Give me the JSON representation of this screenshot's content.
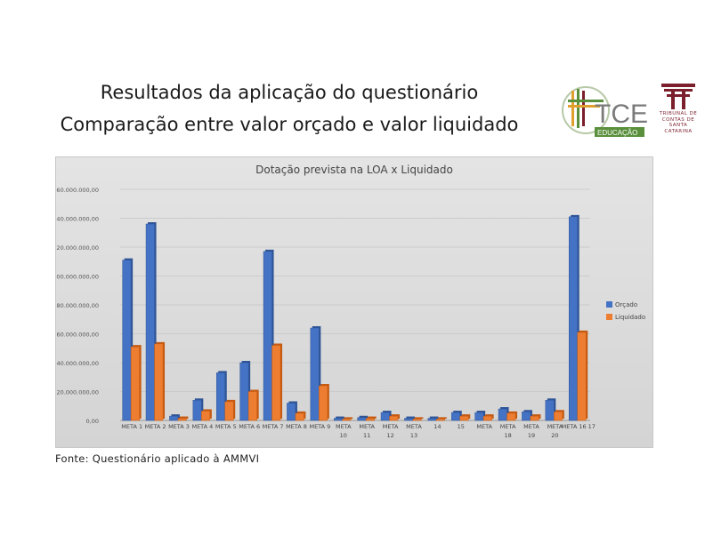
{
  "slide": {
    "title_line1": "Resultados da aplicação do questionário",
    "title_line2": "Comparação entre valor orçado e valor liquidado",
    "source": "Fonte: Questionário aplicado à AMMVI",
    "logo_tce_text": "TCE",
    "logo_tce_sub": "EDUCAÇÃO",
    "seal_text": "TRIBUNAL DE CONTAS DE SANTA CATARINA"
  },
  "colors": {
    "orcado": "#4472c4",
    "liquidado": "#ed7d31",
    "brand_red": "#7a1f2b"
  },
  "chart_data": {
    "type": "bar",
    "title": "Dotação prevista na LOA x Liquidado",
    "legend_position": "right",
    "grid": true,
    "ylim": [
      0,
      160000000
    ],
    "yticks": [
      "0,00",
      "20.000.000,00",
      "40.000.000,00",
      "60.000.000,00",
      "80.000.000,00",
      "100.000.000,00",
      "120.000.000,00",
      "140.000.000,00",
      "160.000.000,00"
    ],
    "categories": [
      "META 1",
      "META 2",
      "META 3",
      "META 4",
      "META 5",
      "META 6",
      "META 7",
      "META 8",
      "META 9",
      "META 10",
      "META 11",
      "META 12",
      "META 13",
      "14",
      "15",
      "META 16",
      "META 17",
      "META 18",
      "META 19",
      "META 20"
    ],
    "tick_labels": [
      [
        "META 1"
      ],
      [
        "META 2"
      ],
      [
        "META 3"
      ],
      [
        "META 4"
      ],
      [
        "META 5"
      ],
      [
        "META 6"
      ],
      [
        "META 7"
      ],
      [
        "META 8"
      ],
      [
        "META 9"
      ],
      [
        "META",
        "10"
      ],
      [
        "META",
        "11"
      ],
      [
        "META",
        "12"
      ],
      [
        "META",
        "13"
      ],
      [
        "14"
      ],
      [
        "15"
      ],
      [
        "META",
        ""
      ],
      [
        "META",
        "18"
      ],
      [
        "META",
        "19"
      ],
      [
        "META",
        "20"
      ],
      [
        "META  16   17",
        ""
      ]
    ],
    "series": [
      {
        "name": "Orçado",
        "values": [
          111000000,
          136000000,
          3000000,
          14000000,
          33000000,
          40000000,
          117000000,
          12000000,
          64000000,
          1500000,
          2000000,
          5500000,
          1500000,
          1500000,
          5500000,
          5500000,
          8000000,
          6000000,
          14000000,
          141000000
        ]
      },
      {
        "name": "Liquidado",
        "values": [
          51000000,
          53000000,
          1500000,
          6500000,
          13000000,
          20000000,
          52000000,
          5000000,
          24000000,
          1000000,
          1500000,
          3000000,
          1000000,
          1000000,
          3000000,
          3000000,
          5000000,
          3000000,
          6000000,
          61000000
        ]
      }
    ]
  }
}
